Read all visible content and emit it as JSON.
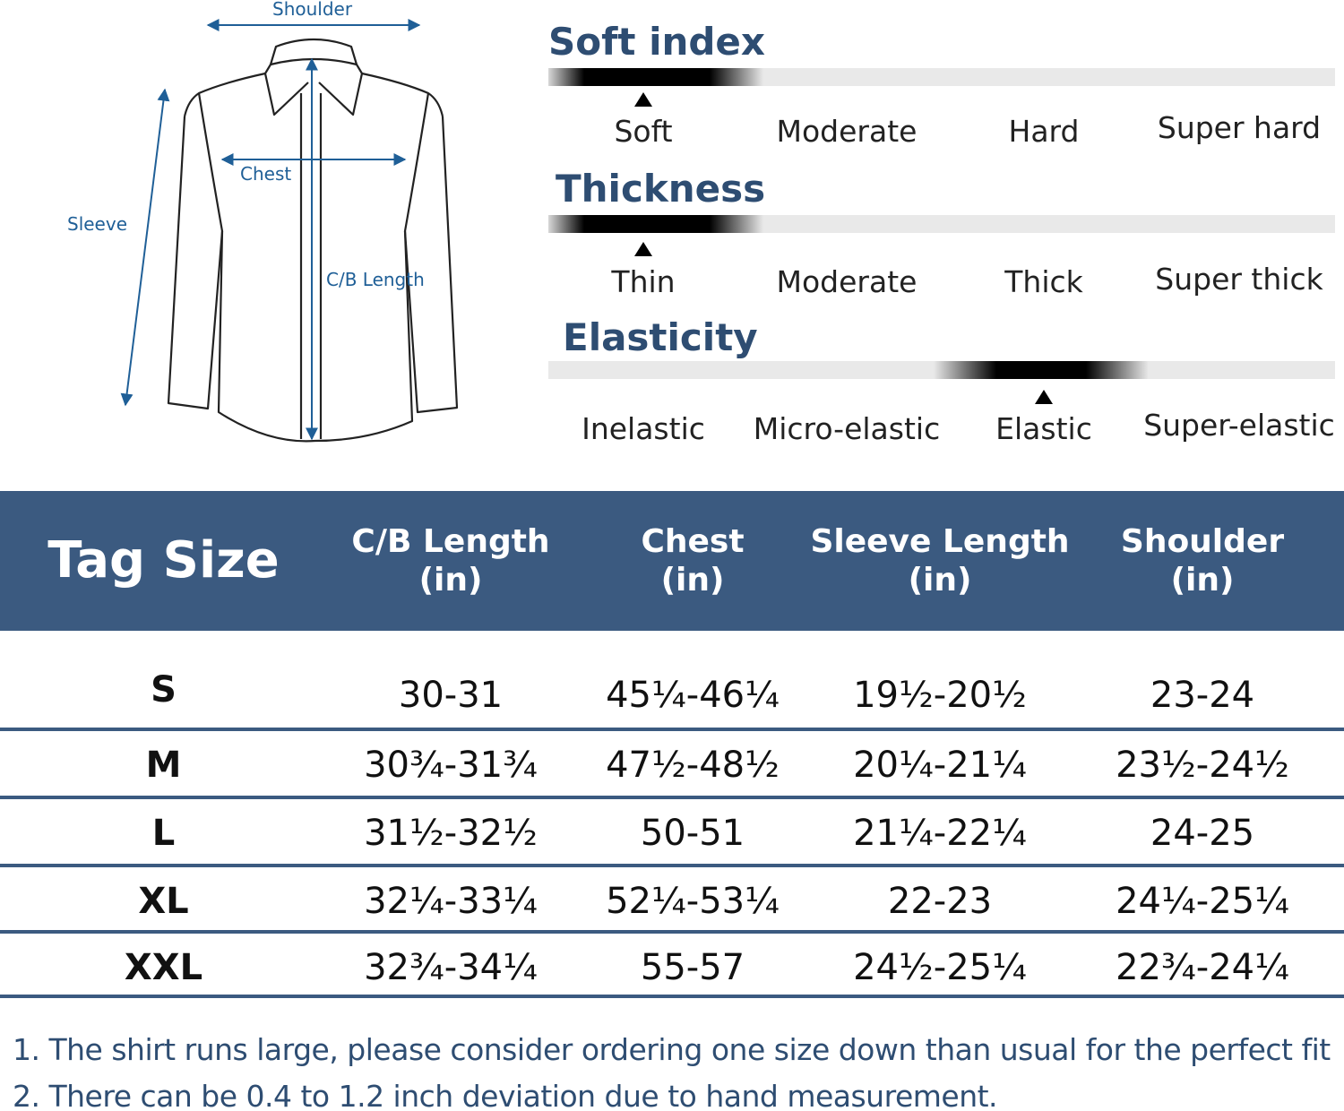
{
  "diagram": {
    "labels": {
      "shoulder": "Shoulder",
      "chest": "Chest",
      "sleeve": "Sleeve",
      "length": "C/B Length"
    },
    "arrow_color": "#1f5f97"
  },
  "scales": [
    {
      "title": "Soft index",
      "options": [
        "Soft",
        "Moderate",
        "Hard",
        "Super hard"
      ],
      "selected": "Soft"
    },
    {
      "title": "Thickness",
      "options": [
        "Thin",
        "Moderate",
        "Thick",
        "Super thick"
      ],
      "selected": "Thin"
    },
    {
      "title": "Elasticity",
      "options": [
        "Inelastic",
        "Micro-elastic",
        "Elastic",
        "Super-elastic"
      ],
      "selected": "Elastic"
    }
  ],
  "table": {
    "header_color": "#3b5a80",
    "headers": [
      {
        "line1": "Tag Size",
        "line2": ""
      },
      {
        "line1": "C/B Length",
        "line2": "(in)"
      },
      {
        "line1": "Chest",
        "line2": "(in)"
      },
      {
        "line1": "Sleeve Length",
        "line2": "(in)"
      },
      {
        "line1": "Shoulder",
        "line2": "(in)"
      }
    ],
    "rows": [
      [
        "S",
        "30-31",
        "45¼-46¼",
        "19½-20½",
        "23-24"
      ],
      [
        "M",
        "30¾-31¾",
        "47½-48½",
        "20¼-21¼",
        "23½-24½"
      ],
      [
        "L",
        "31½-32½",
        "50-51",
        "21¼-22¼",
        "24-25"
      ],
      [
        "XL",
        "32¼-33¼",
        "52¼-53¼",
        "22-23",
        "24¼-25¼"
      ],
      [
        "XXL",
        "32¾-34¼",
        "55-57",
        "24½-25¼",
        "22¾-24¼"
      ]
    ]
  },
  "notes": [
    "1.  The shirt runs large, please consider ordering one size down than usual for the perfect fit",
    "2. There can be 0.4 to 1.2 inch deviation due to hand measurement."
  ]
}
